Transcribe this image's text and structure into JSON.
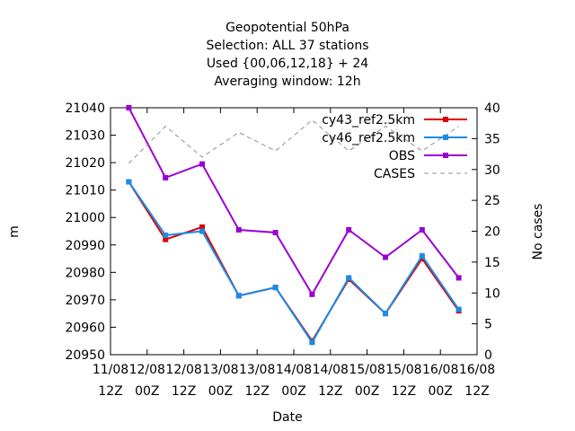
{
  "chart_data": {
    "type": "line",
    "title_lines": [
      "Geopotential 50hPa",
      "Selection: ALL      37 stations",
      "Used {00,06,12,18} + 24",
      "Averaging window: 12h"
    ],
    "xlabel": "Date",
    "ylabel": "m",
    "y2label": "No cases",
    "ylim": [
      20950,
      21040
    ],
    "y2lim": [
      0,
      40
    ],
    "yticks": [
      20950,
      20960,
      20970,
      20980,
      20990,
      21000,
      21010,
      21020,
      21030,
      21040
    ],
    "y2ticks": [
      0,
      5,
      10,
      15,
      20,
      25,
      30,
      35,
      40
    ],
    "xticks": [
      {
        "line1": "11/08",
        "line2": "12Z"
      },
      {
        "line1": "12/08",
        "line2": "00Z"
      },
      {
        "line1": "12/08",
        "line2": "12Z"
      },
      {
        "line1": "13/08",
        "line2": "00Z"
      },
      {
        "line1": "13/08",
        "line2": "12Z"
      },
      {
        "line1": "14/08",
        "line2": "00Z"
      },
      {
        "line1": "14/08",
        "line2": "12Z"
      },
      {
        "line1": "15/08",
        "line2": "00Z"
      },
      {
        "line1": "15/08",
        "line2": "12Z"
      },
      {
        "line1": "16/08",
        "line2": "00Z"
      },
      {
        "line1": "16/08",
        "line2": "12Z"
      }
    ],
    "x": [
      "11/08 18Z",
      "12/08 06Z",
      "12/08 18Z",
      "13/08 06Z",
      "13/08 18Z",
      "14/08 06Z",
      "14/08 18Z",
      "15/08 06Z",
      "15/08 18Z",
      "16/08 06Z"
    ],
    "legend_position": "top-right",
    "grid": false,
    "series": [
      {
        "name": "cy43_ref2.5km",
        "color": "#dd0000",
        "marker": "square",
        "axis": "left",
        "values": [
          21013,
          20992,
          20996.5,
          20971.5,
          20974.5,
          20955,
          20977.5,
          20965,
          20985,
          20966
        ]
      },
      {
        "name": "cy46_ref2.5km",
        "color": "#1a8ce6",
        "marker": "square",
        "axis": "left",
        "values": [
          21013,
          20993.5,
          20995,
          20971.5,
          20974.5,
          20954.5,
          20978,
          20965,
          20986,
          20966.5
        ]
      },
      {
        "name": "OBS",
        "color": "#9a00d4",
        "marker": "square",
        "axis": "left",
        "values": [
          21040,
          21014.5,
          21019.5,
          20995.5,
          20994.5,
          20972,
          20995.5,
          20985.5,
          20995.5,
          20978
        ]
      },
      {
        "name": "CASES",
        "color": "#909090",
        "dash": true,
        "axis": "right",
        "values": [
          31,
          37,
          32,
          36,
          33,
          38,
          33,
          37,
          33,
          37
        ]
      }
    ]
  }
}
